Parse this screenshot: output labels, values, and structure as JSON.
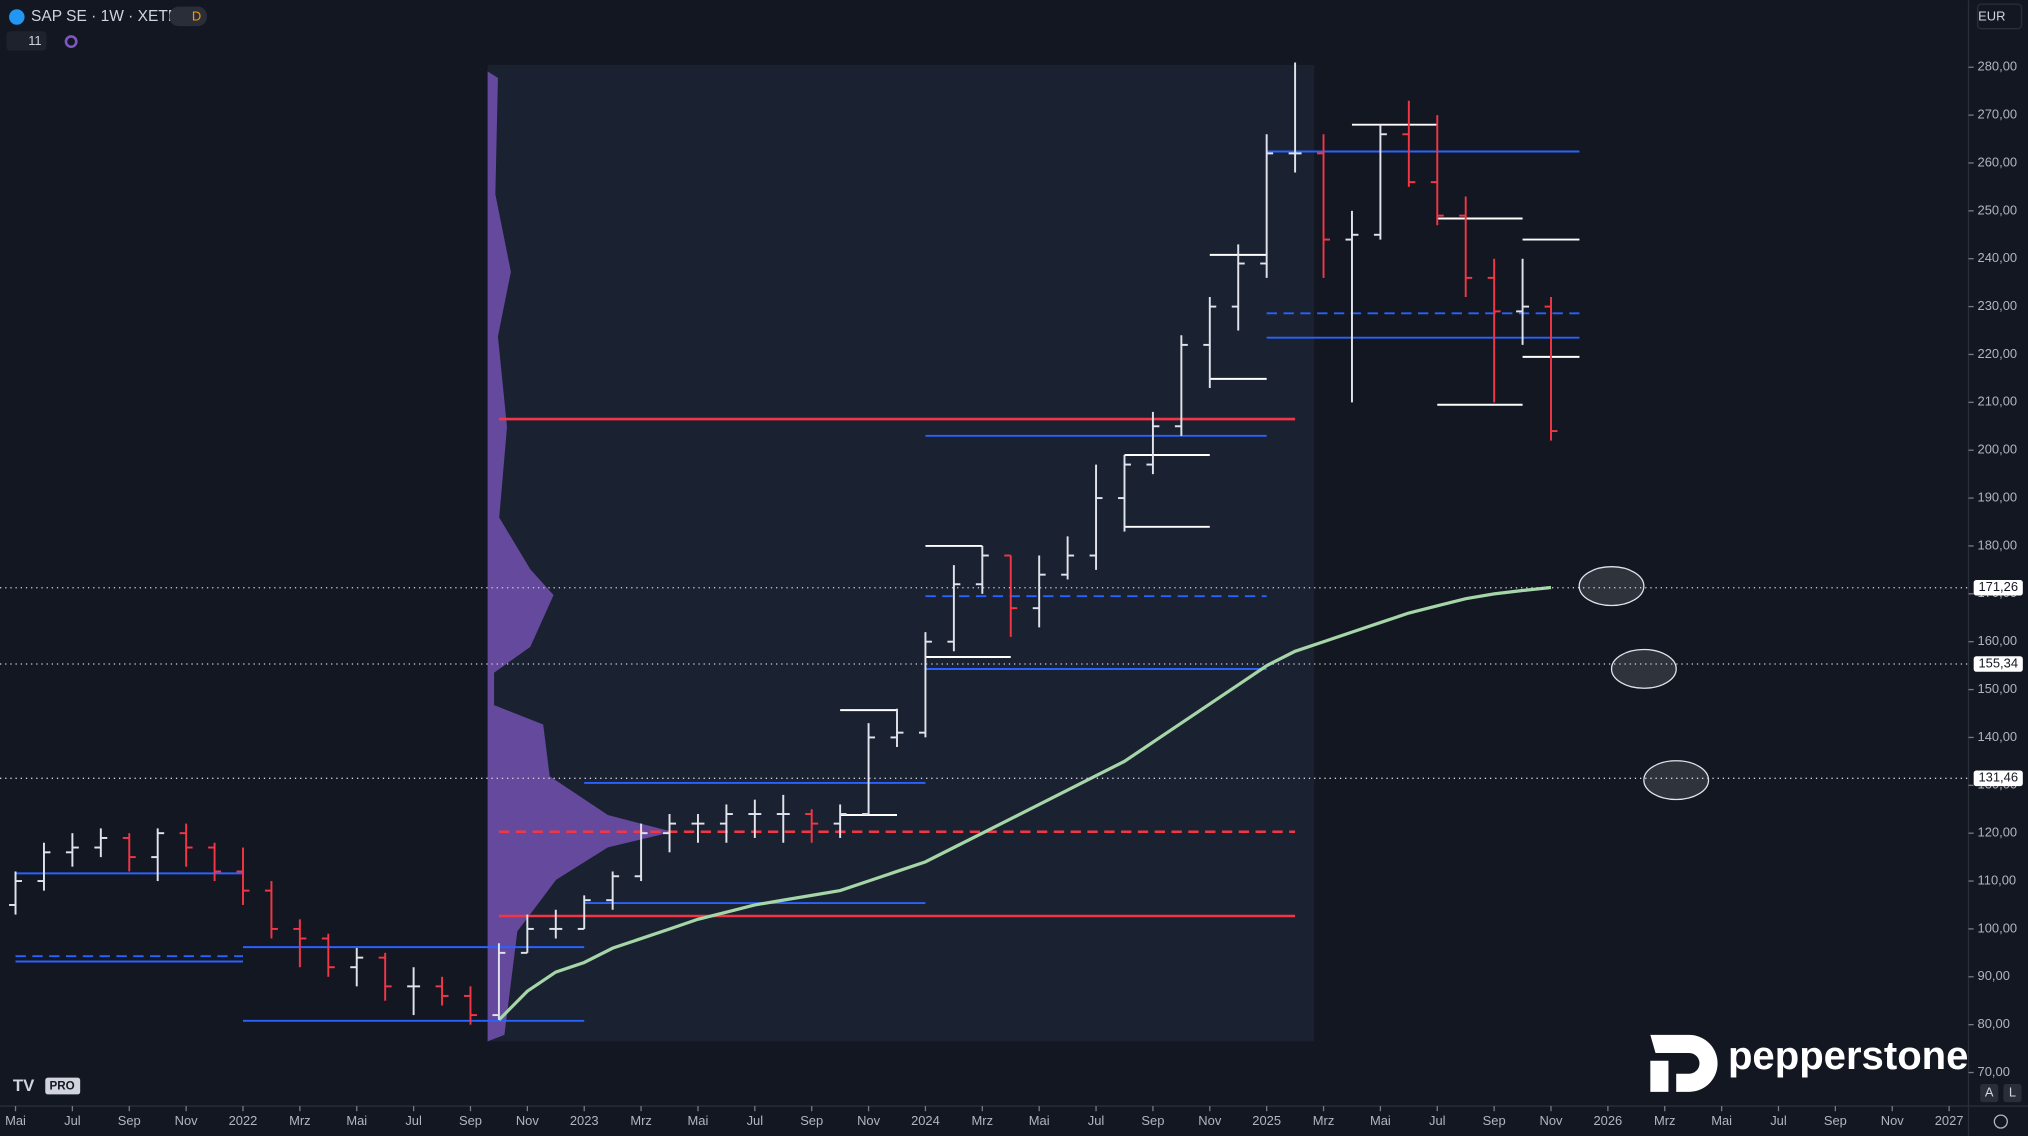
{
  "header": {
    "symbol": "SAP SE · 1W · XETR",
    "badge": "D",
    "indicators": "11",
    "currency": "EUR"
  },
  "branding": {
    "logo": "pepperstone",
    "tv": "PRO",
    "buttons": [
      "A",
      "L"
    ]
  },
  "chart_data": {
    "type": "ohlc",
    "x": [
      "2021-05",
      "2021-06",
      "2021-07",
      "2021-08",
      "2021-09",
      "2021-10",
      "2021-11",
      "2021-12",
      "2022-01",
      "2022-02",
      "2022-03",
      "2022-04",
      "2022-05",
      "2022-06",
      "2022-07",
      "2022-08",
      "2022-09",
      "2022-10",
      "2022-11",
      "2022-12",
      "2023-01",
      "2023-02",
      "2023-03",
      "2023-04",
      "2023-05",
      "2023-06",
      "2023-07",
      "2023-08",
      "2023-09",
      "2023-10",
      "2023-11",
      "2023-12",
      "2024-01",
      "2024-02",
      "2024-03",
      "2024-04",
      "2024-05",
      "2024-06",
      "2024-07",
      "2024-08",
      "2024-09",
      "2024-10",
      "2024-11",
      "2024-12",
      "2025-01",
      "2025-02",
      "2025-03",
      "2025-04",
      "2025-05",
      "2025-06",
      "2025-07",
      "2025-08",
      "2025-09",
      "2025-10",
      "2025-11"
    ],
    "open": [
      105,
      110,
      116,
      117,
      119,
      115,
      120,
      117,
      112,
      108,
      100,
      98,
      92,
      94,
      88,
      88,
      86,
      82,
      95,
      100,
      100,
      106,
      111,
      120,
      122,
      122,
      124,
      124,
      124,
      122,
      124,
      140,
      141,
      160,
      172,
      178,
      167,
      174,
      178,
      190,
      197,
      205,
      222,
      230,
      239,
      262,
      262,
      244,
      245,
      266,
      256,
      249,
      236,
      229,
      230
    ],
    "high": [
      112,
      118,
      120,
      121,
      120,
      121,
      122,
      118,
      117,
      110,
      102,
      99,
      96,
      95,
      92,
      90,
      88,
      97,
      103,
      104,
      107,
      112,
      122,
      124,
      124,
      126,
      127,
      128,
      125,
      126,
      143,
      146,
      162,
      176,
      180,
      178,
      178,
      182,
      197,
      199,
      208,
      224,
      232,
      243,
      266,
      281,
      266,
      250,
      268,
      273,
      270,
      253,
      240,
      240,
      232
    ],
    "low": [
      103,
      108,
      113,
      115,
      112,
      110,
      113,
      110,
      105,
      98,
      92,
      90,
      88,
      85,
      82,
      84,
      80,
      81,
      95,
      98,
      100,
      104,
      110,
      116,
      118,
      118,
      119,
      118,
      118,
      119,
      124,
      138,
      140,
      158,
      170,
      161,
      163,
      173,
      175,
      183,
      195,
      203,
      213,
      225,
      236,
      258,
      236,
      210,
      244,
      255,
      247,
      232,
      210,
      222,
      202
    ],
    "close": [
      110,
      116,
      117,
      119,
      115,
      120,
      117,
      112,
      108,
      100,
      98,
      92,
      94,
      88,
      88,
      86,
      82,
      95,
      100,
      100,
      106,
      111,
      120,
      122,
      122,
      124,
      124,
      124,
      122,
      124,
      140,
      141,
      160,
      172,
      178,
      167,
      174,
      178,
      190,
      197,
      205,
      222,
      230,
      239,
      262,
      262,
      244,
      245,
      266,
      256,
      249,
      236,
      229,
      230,
      204
    ],
    "up_color": "#e0e3eb",
    "down_color": "#f23645",
    "overlays": [
      {
        "color": "#a5d6a7",
        "values": [
          null,
          null,
          null,
          null,
          null,
          null,
          null,
          null,
          null,
          null,
          null,
          null,
          null,
          null,
          null,
          null,
          null,
          81,
          87,
          91,
          93,
          96,
          98,
          100,
          102,
          103.5,
          105,
          106,
          107,
          108,
          110,
          112,
          114,
          117,
          120,
          123,
          126,
          129,
          132,
          135,
          139,
          143,
          147,
          151,
          155,
          158,
          160,
          162,
          164,
          166,
          167.5,
          169,
          170,
          170.7,
          171.3
        ]
      }
    ],
    "levels": [
      {
        "value": 206.5,
        "from": "2022-10",
        "to": "2025-02",
        "color": "#f23645",
        "dashed": false
      },
      {
        "value": 102.7,
        "from": "2022-10",
        "to": "2025-02",
        "color": "#f23645",
        "dashed": false
      },
      {
        "value": 120.3,
        "from": "2022-10",
        "to": "2025-02",
        "color": "#f23645",
        "dashed": true
      },
      {
        "value": 262.4,
        "from": "2025-01",
        "to": "2025-12",
        "color": "#2962ff",
        "dashed": false
      },
      {
        "value": 228.6,
        "from": "2025-01",
        "to": "2025-12",
        "color": "#2962ff",
        "dashed": true
      },
      {
        "value": 223.5,
        "from": "2025-01",
        "to": "2025-12",
        "color": "#2962ff",
        "dashed": false
      },
      {
        "value": 203,
        "from": "2024-01",
        "to": "2025-01",
        "color": "#2962ff",
        "dashed": false
      },
      {
        "value": 169.5,
        "from": "2024-01",
        "to": "2025-01",
        "color": "#2962ff",
        "dashed": true
      },
      {
        "value": 154.3,
        "from": "2024-01",
        "to": "2025-01",
        "color": "#2962ff",
        "dashed": false
      },
      {
        "value": 130.5,
        "from": "2023-01",
        "to": "2024-01",
        "color": "#2962ff",
        "dashed": false
      },
      {
        "value": 105.4,
        "from": "2023-01",
        "to": "2024-01",
        "color": "#2962ff",
        "dashed": false
      },
      {
        "value": 111.6,
        "from": "2021-05",
        "to": "2022-01",
        "color": "#2962ff",
        "dashed": false
      },
      {
        "value": 94.3,
        "from": "2021-05",
        "to": "2022-01",
        "color": "#2962ff",
        "dashed": true
      },
      {
        "value": 93.2,
        "from": "2021-05",
        "to": "2022-01",
        "color": "#2962ff",
        "dashed": false
      },
      {
        "value": 96.2,
        "from": "2022-01",
        "to": "2023-01",
        "color": "#2962ff",
        "dashed": false
      },
      {
        "value": 80.8,
        "from": "2022-01",
        "to": "2023-01",
        "color": "#2962ff",
        "dashed": false
      },
      {
        "value": 268,
        "from": "2025-04",
        "to": "2025-07",
        "color": "#ffffff",
        "dashed": false
      },
      {
        "value": 248.4,
        "from": "2025-07",
        "to": "2025-10",
        "color": "#ffffff",
        "dashed": false
      },
      {
        "value": 244,
        "from": "2025-10",
        "to": "2025-12",
        "color": "#ffffff",
        "dashed": false
      },
      {
        "value": 219.5,
        "from": "2025-10",
        "to": "2025-12",
        "color": "#ffffff",
        "dashed": false
      },
      {
        "value": 209.5,
        "from": "2025-07",
        "to": "2025-10",
        "color": "#ffffff",
        "dashed": false
      },
      {
        "value": 240.8,
        "from": "2024-11",
        "to": "2025-01",
        "color": "#ffffff",
        "dashed": false
      },
      {
        "value": 214.9,
        "from": "2024-11",
        "to": "2025-01",
        "color": "#ffffff",
        "dashed": false
      },
      {
        "value": 199,
        "from": "2024-08",
        "to": "2024-11",
        "color": "#ffffff",
        "dashed": false
      },
      {
        "value": 184,
        "from": "2024-08",
        "to": "2024-11",
        "color": "#ffffff",
        "dashed": false
      },
      {
        "value": 180,
        "from": "2024-01",
        "to": "2024-03",
        "color": "#ffffff",
        "dashed": false
      },
      {
        "value": 156.8,
        "from": "2024-01",
        "to": "2024-04",
        "color": "#ffffff",
        "dashed": false
      },
      {
        "value": 145.7,
        "from": "2023-10",
        "to": "2023-12",
        "color": "#ffffff",
        "dashed": false
      },
      {
        "value": 123.8,
        "from": "2023-10",
        "to": "2023-12",
        "color": "#ffffff",
        "dashed": false
      }
    ],
    "price_lines": [
      {
        "value": 171.26,
        "label": "171,26"
      },
      {
        "value": 155.34,
        "label": "155,34"
      },
      {
        "value": 131.46,
        "label": "131,46"
      }
    ],
    "xlim": [
      "2021-05",
      "2027-01"
    ],
    "xticks": [
      {
        "value": "2021-05",
        "label": "Mai"
      },
      {
        "value": "2021-07",
        "label": "Jul"
      },
      {
        "value": "2021-09",
        "label": "Sep"
      },
      {
        "value": "2021-11",
        "label": "Nov"
      },
      {
        "value": "2022-01",
        "label": "2022"
      },
      {
        "value": "2022-03",
        "label": "Mrz"
      },
      {
        "value": "2022-05",
        "label": "Mai"
      },
      {
        "value": "2022-07",
        "label": "Jul"
      },
      {
        "value": "2022-09",
        "label": "Sep"
      },
      {
        "value": "2022-11",
        "label": "Nov"
      },
      {
        "value": "2023-01",
        "label": "2023"
      },
      {
        "value": "2023-03",
        "label": "Mrz"
      },
      {
        "value": "2023-05",
        "label": "Mai"
      },
      {
        "value": "2023-07",
        "label": "Jul"
      },
      {
        "value": "2023-09",
        "label": "Sep"
      },
      {
        "value": "2023-11",
        "label": "Nov"
      },
      {
        "value": "2024-01",
        "label": "2024"
      },
      {
        "value": "2024-03",
        "label": "Mrz"
      },
      {
        "value": "2024-05",
        "label": "Mai"
      },
      {
        "value": "2024-07",
        "label": "Jul"
      },
      {
        "value": "2024-09",
        "label": "Sep"
      },
      {
        "value": "2024-11",
        "label": "Nov"
      },
      {
        "value": "2025-01",
        "label": "2025"
      },
      {
        "value": "2025-03",
        "label": "Mrz"
      },
      {
        "value": "2025-05",
        "label": "Mai"
      },
      {
        "value": "2025-07",
        "label": "Jul"
      },
      {
        "value": "2025-09",
        "label": "Sep"
      },
      {
        "value": "2025-11",
        "label": "Nov"
      },
      {
        "value": "2026-01",
        "label": "2026"
      },
      {
        "value": "2026-03",
        "label": "Mrz"
      },
      {
        "value": "2026-05",
        "label": "Mai"
      },
      {
        "value": "2026-07",
        "label": "Jul"
      },
      {
        "value": "2026-09",
        "label": "Sep"
      },
      {
        "value": "2026-11",
        "label": "Nov"
      },
      {
        "value": "2027-01",
        "label": "2027"
      }
    ],
    "ylim": [
      63,
      294
    ],
    "yticks": [
      {
        "value": 70,
        "label": "70,00"
      },
      {
        "value": 80,
        "label": "80,00"
      },
      {
        "value": 90,
        "label": "90,00"
      },
      {
        "value": 100,
        "label": "100,00"
      },
      {
        "value": 110,
        "label": "110,00"
      },
      {
        "value": 120,
        "label": "120,00"
      },
      {
        "value": 130,
        "label": "130,00"
      },
      {
        "value": 140,
        "label": "140,00"
      },
      {
        "value": 150,
        "label": "150,00"
      },
      {
        "value": 160,
        "label": "160,00"
      },
      {
        "value": 170,
        "label": "170,00"
      },
      {
        "value": 180,
        "label": "180,00"
      },
      {
        "value": 190,
        "label": "190,00"
      },
      {
        "value": 200,
        "label": "200,00"
      },
      {
        "value": 210,
        "label": "210,00"
      },
      {
        "value": 220,
        "label": "220,00"
      },
      {
        "value": 230,
        "label": "230,00"
      },
      {
        "value": 240,
        "label": "240,00"
      },
      {
        "value": 250,
        "label": "250,00"
      },
      {
        "value": 260,
        "label": "260,00"
      },
      {
        "value": 270,
        "label": "270,00"
      },
      {
        "value": 280,
        "label": "280,00"
      }
    ]
  }
}
